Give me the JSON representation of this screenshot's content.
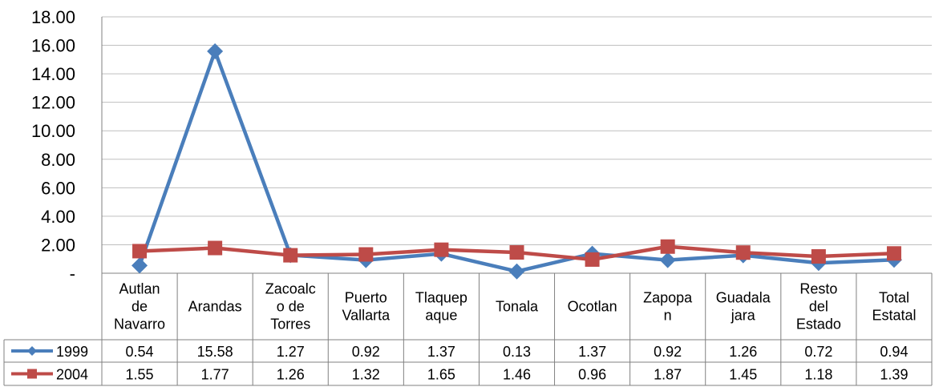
{
  "chart_data": {
    "type": "line",
    "title": "",
    "xlabel": "",
    "ylabel": "",
    "ylim": [
      0,
      18
    ],
    "y_ticks": [
      "-",
      "2.00",
      "4.00",
      "6.00",
      "8.00",
      "10.00",
      "12.00",
      "14.00",
      "16.00",
      "18.00"
    ],
    "y_tick_values": [
      0,
      2,
      4,
      6,
      8,
      10,
      12,
      14,
      16,
      18
    ],
    "grid": "horizontal",
    "legend": "data-table",
    "categories": [
      [
        "Autlan",
        "de",
        "Navarro"
      ],
      [
        "Arandas"
      ],
      [
        "Zacoalc",
        "o de",
        "Torres"
      ],
      [
        "Puerto",
        "Vallarta"
      ],
      [
        "Tlaquep",
        "aque"
      ],
      [
        "Tonala"
      ],
      [
        "Ocotlan"
      ],
      [
        "Zapopa",
        "n"
      ],
      [
        "Guadala",
        "jara"
      ],
      [
        "Resto",
        "del",
        "Estado"
      ],
      [
        "Total",
        "Estatal"
      ]
    ],
    "series": [
      {
        "name": "1999",
        "color": "#4a7ebb",
        "marker": "diamond",
        "values": [
          0.54,
          15.58,
          1.27,
          0.92,
          1.37,
          0.13,
          1.37,
          0.92,
          1.26,
          0.72,
          0.94
        ],
        "labels": [
          "0.54",
          "15.58",
          "1.27",
          "0.92",
          "1.37",
          "0.13",
          "1.37",
          "0.92",
          "1.26",
          "0.72",
          "0.94"
        ]
      },
      {
        "name": "2004",
        "color": "#be4b48",
        "marker": "square",
        "values": [
          1.55,
          1.77,
          1.26,
          1.32,
          1.65,
          1.46,
          0.96,
          1.87,
          1.45,
          1.18,
          1.39
        ],
        "labels": [
          "1.55",
          "1.77",
          "1.26",
          "1.32",
          "1.65",
          "1.46",
          "0.96",
          "1.87",
          "1.45",
          "1.18",
          "1.39"
        ]
      }
    ]
  }
}
